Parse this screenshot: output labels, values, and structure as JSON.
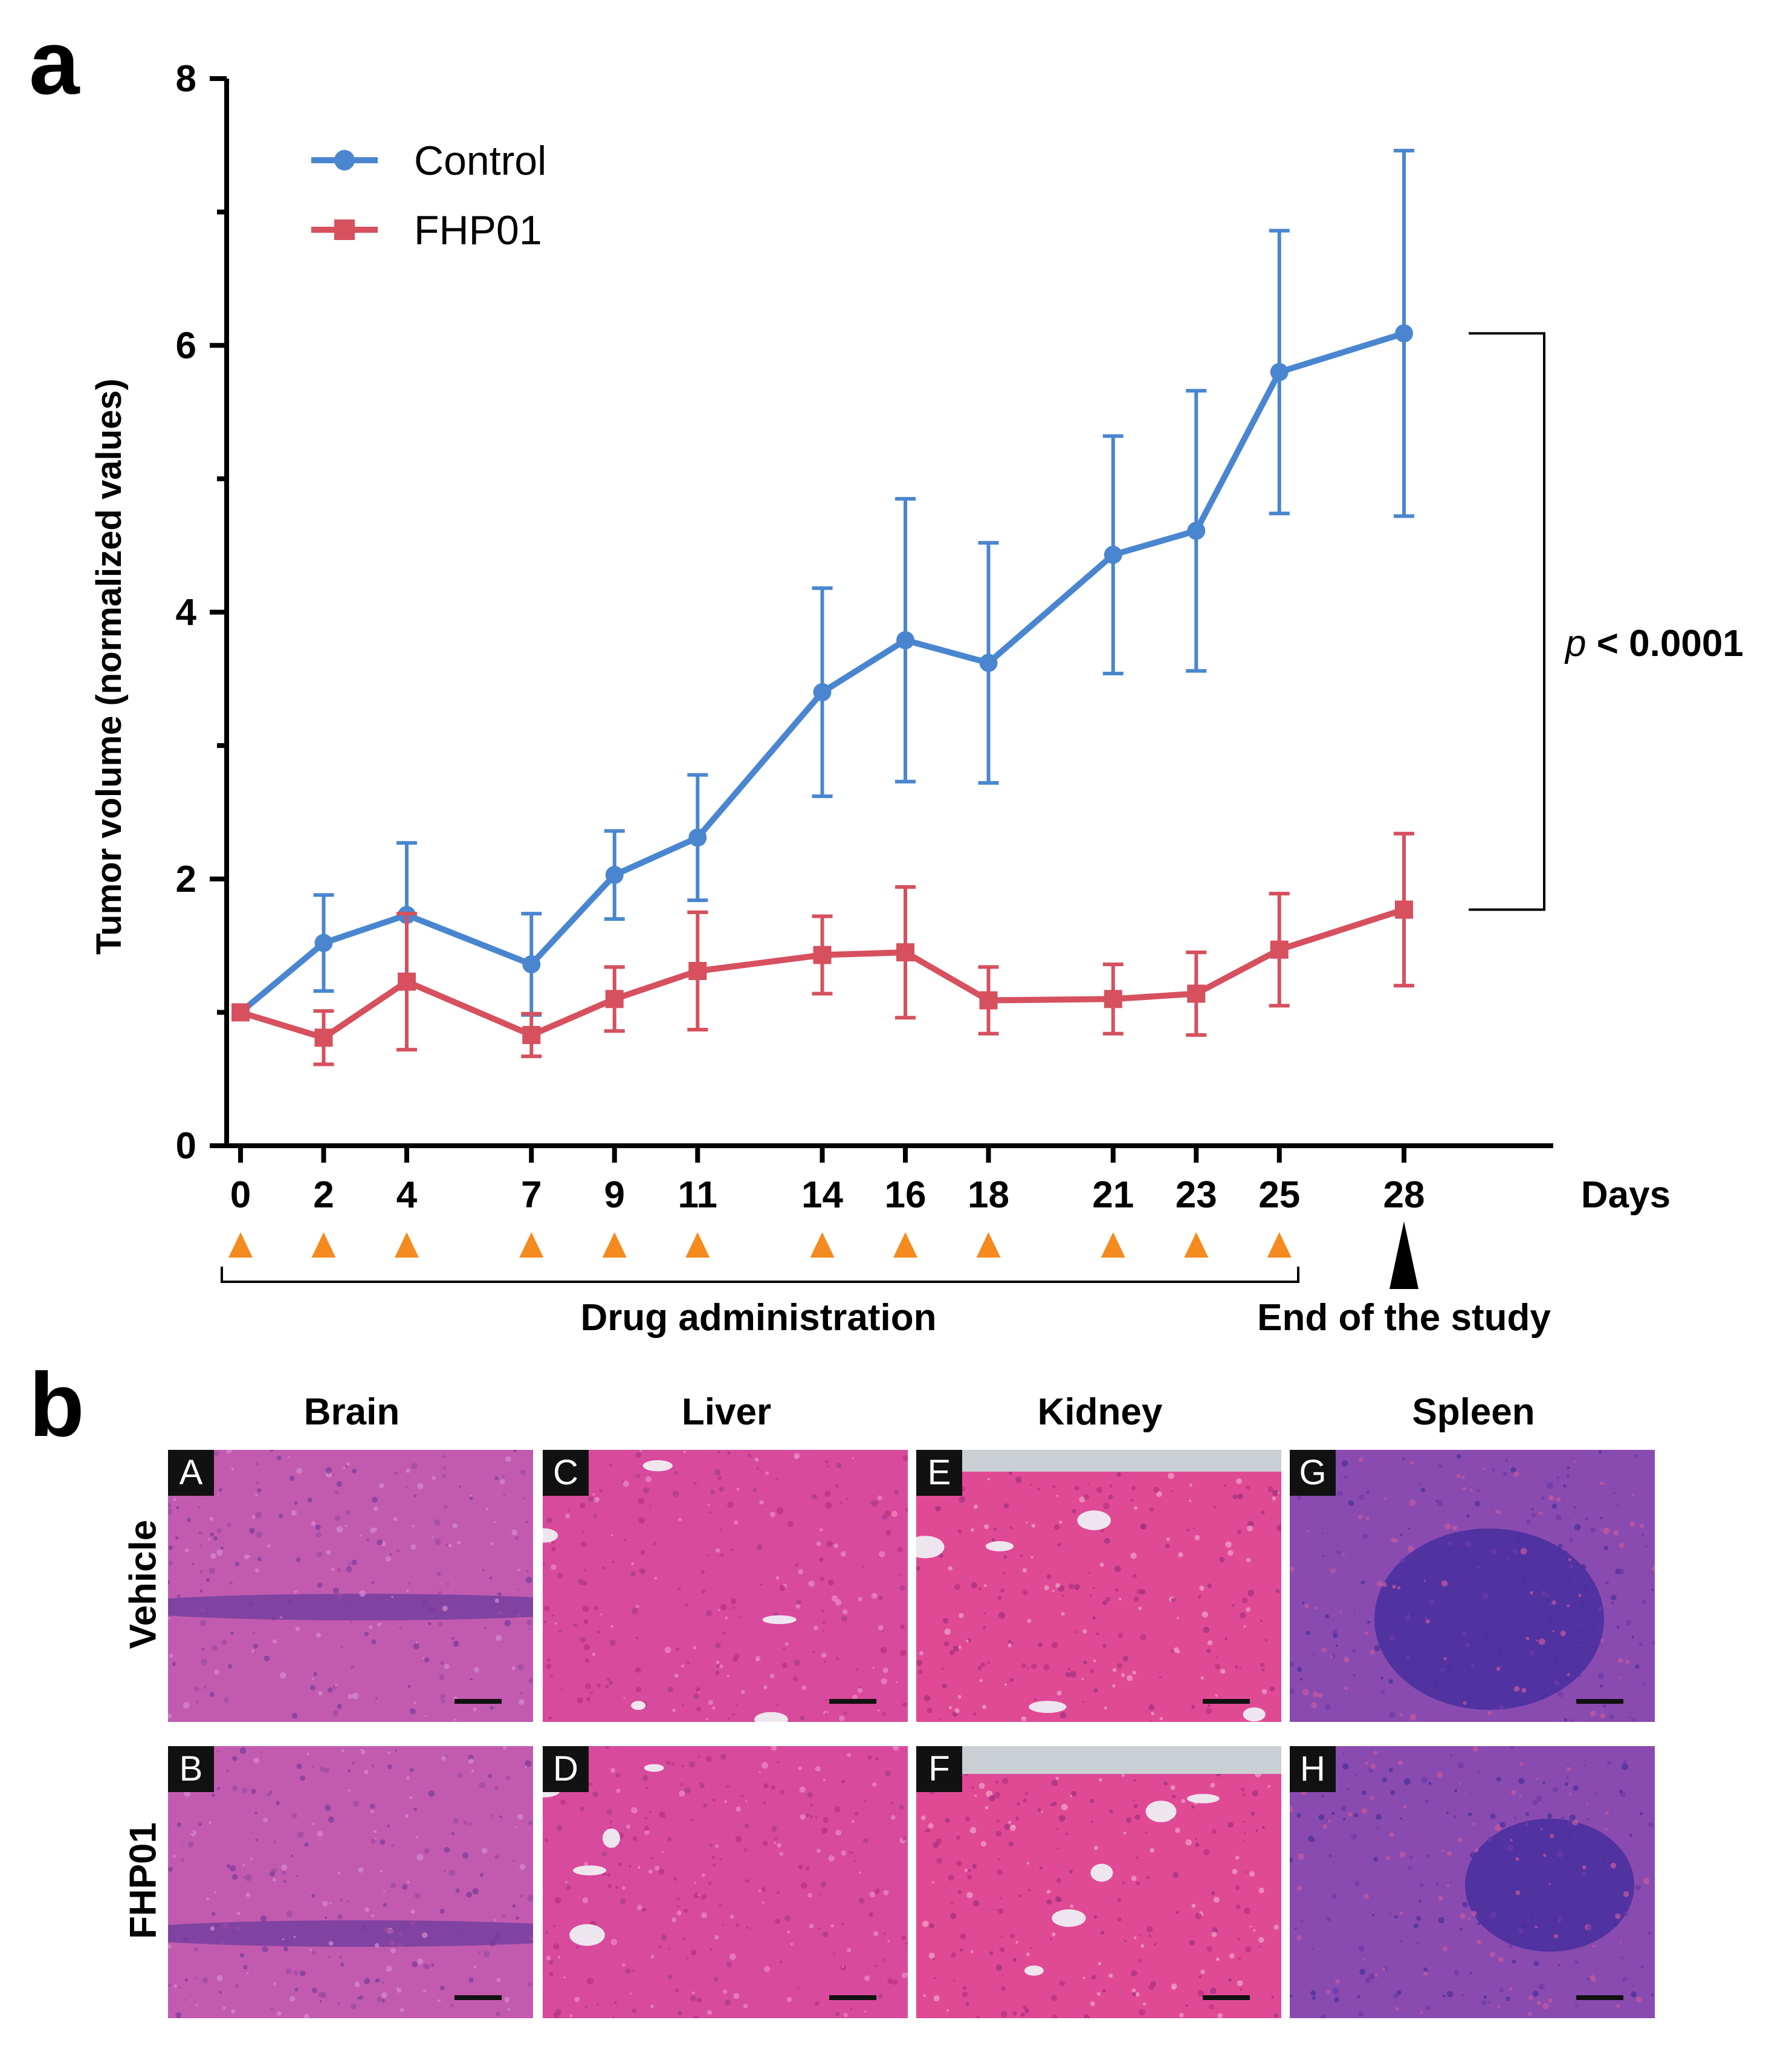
{
  "panel_a_label": "a",
  "panel_b_label": "b",
  "chart_data": {
    "type": "line",
    "ylabel": "Tumor volume (normalized values)",
    "xlabel": "Days",
    "ylim": [
      0,
      8
    ],
    "yticks": [
      0,
      2,
      4,
      6,
      8
    ],
    "minor_yticks": [
      1,
      3,
      5,
      7
    ],
    "x": [
      0,
      2,
      4,
      7,
      9,
      11,
      14,
      16,
      18,
      21,
      23,
      25,
      28
    ],
    "series": [
      {
        "name": "Control",
        "color": "#4a86cf",
        "marker": "circle",
        "values": [
          1.0,
          1.52,
          1.73,
          1.36,
          2.03,
          2.31,
          3.4,
          3.79,
          3.62,
          4.43,
          4.61,
          5.8,
          6.09
        ],
        "errors": [
          0.0,
          0.36,
          0.54,
          0.38,
          0.33,
          0.47,
          0.78,
          1.06,
          0.9,
          0.89,
          1.05,
          1.06,
          1.37
        ]
      },
      {
        "name": "FHP01",
        "color": "#d6505e",
        "marker": "square",
        "values": [
          1.0,
          0.81,
          1.23,
          0.83,
          1.1,
          1.31,
          1.43,
          1.45,
          1.09,
          1.1,
          1.14,
          1.47,
          1.77
        ],
        "errors": [
          0.0,
          0.2,
          0.51,
          0.16,
          0.24,
          0.44,
          0.29,
          0.49,
          0.25,
          0.26,
          0.31,
          0.42,
          0.57
        ]
      }
    ],
    "legend_position": "top-left",
    "significance": {
      "italic": "p",
      "text": " < 0.0001"
    },
    "dose_days": [
      0,
      2,
      4,
      7,
      9,
      11,
      14,
      16,
      18,
      21,
      23,
      25
    ],
    "dose_marker_color": "#f58a1f",
    "end_day": 28,
    "drug_label": "Drug administration",
    "end_label": "End of the study"
  },
  "histology": {
    "columns": [
      "Brain",
      "Liver",
      "Kidney",
      "Spleen"
    ],
    "rows": [
      "Vehicle",
      "FHP01"
    ],
    "badges": [
      [
        "A",
        "C",
        "E",
        "G"
      ],
      [
        "B",
        "D",
        "F",
        "H"
      ]
    ]
  }
}
